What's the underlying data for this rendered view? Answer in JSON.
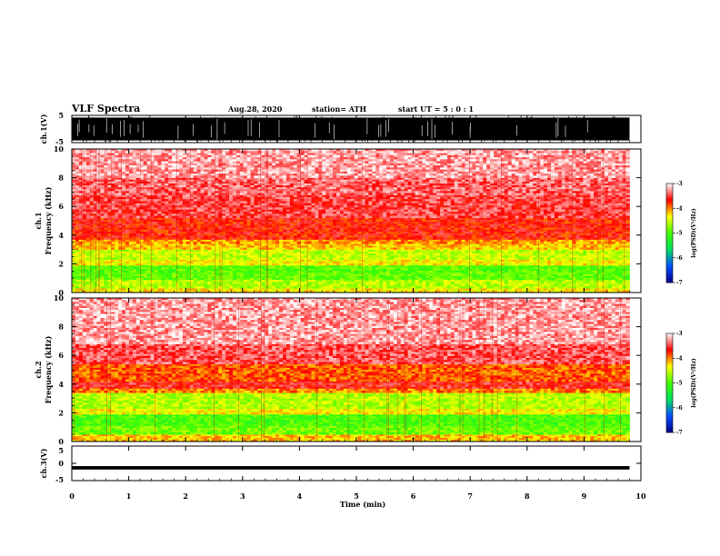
{
  "header": {
    "title": "VLF Spectra",
    "date": "Aug.28, 2020",
    "station": "station= ATH",
    "start": "start  UT =   5 : 0  : 1"
  },
  "chart_data": [
    {
      "type": "line",
      "name": "ch1-waveform",
      "ylabel": "ch.1(V)",
      "ylim": [
        -5,
        5
      ],
      "yticks": [
        "5",
        "-5"
      ],
      "x_range_min": [
        0,
        9.8
      ],
      "amplitude_v": [
        -5,
        5
      ]
    },
    {
      "type": "heatmap",
      "name": "ch1-spectrogram",
      "ylabel_line1": "ch.1",
      "ylabel_line2": "Frequency (kHz)",
      "ylim": [
        0,
        10
      ],
      "yticks": [
        "0",
        "2",
        "4",
        "6",
        "8",
        "10"
      ],
      "x_range_min": [
        0,
        9.8
      ],
      "bands_khz_log_psd": [
        {
          "f0": 0.0,
          "f1": 0.3,
          "v": -4.3
        },
        {
          "f0": 0.3,
          "f1": 0.9,
          "v": -4.6
        },
        {
          "f0": 0.9,
          "f1": 1.4,
          "v": -4.9
        },
        {
          "f0": 1.4,
          "f1": 1.9,
          "v": -4.95
        },
        {
          "f0": 1.9,
          "f1": 2.3,
          "v": -4.35
        },
        {
          "f0": 2.3,
          "f1": 3.0,
          "v": -4.55
        },
        {
          "f0": 3.0,
          "f1": 3.4,
          "v": -4.2
        },
        {
          "f0": 3.4,
          "f1": 3.7,
          "v": -4.05
        },
        {
          "f0": 3.7,
          "f1": 5.2,
          "v": -3.7
        },
        {
          "f0": 5.2,
          "f1": 6.8,
          "v": -3.5
        },
        {
          "f0": 6.8,
          "f1": 8.0,
          "v": -3.4
        },
        {
          "f0": 8.0,
          "f1": 10.0,
          "v": -3.25
        }
      ]
    },
    {
      "type": "heatmap",
      "name": "ch2-spectrogram",
      "ylabel_line1": "ch.2",
      "ylabel_line2": "Frequency (kHz)",
      "ylim": [
        0,
        10
      ],
      "yticks": [
        "0",
        "2",
        "4",
        "6",
        "8",
        "10"
      ],
      "x_range_min": [
        0,
        9.8
      ],
      "bands_khz_log_psd": [
        {
          "f0": 0.0,
          "f1": 0.5,
          "v": -4.2
        },
        {
          "f0": 0.5,
          "f1": 1.1,
          "v": -4.85
        },
        {
          "f0": 1.1,
          "f1": 1.9,
          "v": -5.0
        },
        {
          "f0": 1.9,
          "f1": 2.3,
          "v": -4.35
        },
        {
          "f0": 2.3,
          "f1": 3.4,
          "v": -4.6
        },
        {
          "f0": 3.4,
          "f1": 3.7,
          "v": -4.0
        },
        {
          "f0": 3.7,
          "f1": 4.2,
          "v": -3.6
        },
        {
          "f0": 4.2,
          "f1": 5.4,
          "v": -3.9
        },
        {
          "f0": 5.4,
          "f1": 6.8,
          "v": -3.45
        },
        {
          "f0": 6.8,
          "f1": 10.0,
          "v": -3.25
        }
      ]
    },
    {
      "type": "line",
      "name": "ch3-waveform",
      "ylabel": "ch.3(V)",
      "ylim": [
        -5,
        5
      ],
      "yticks": [
        "5",
        "0",
        "-5"
      ],
      "x_range_min": [
        0,
        9.8
      ],
      "level_v": -1.3,
      "amplitude_v": [
        -1.8,
        -0.8
      ]
    }
  ],
  "x_axis": {
    "label": "Time (min)",
    "range": [
      0,
      10
    ],
    "ticks": [
      "0",
      "1",
      "2",
      "3",
      "4",
      "5",
      "6",
      "7",
      "8",
      "9",
      "10"
    ]
  },
  "colorbar": {
    "label": "log(PSD)(V²/Hz)",
    "range": [
      -7,
      -3
    ],
    "ticks": [
      "-3",
      "-4",
      "-5",
      "-6",
      "-7"
    ],
    "colors": [
      "#00008b",
      "#0050ff",
      "#00e060",
      "#40ff00",
      "#ffff00",
      "#ff0000",
      "#ffffff"
    ]
  }
}
